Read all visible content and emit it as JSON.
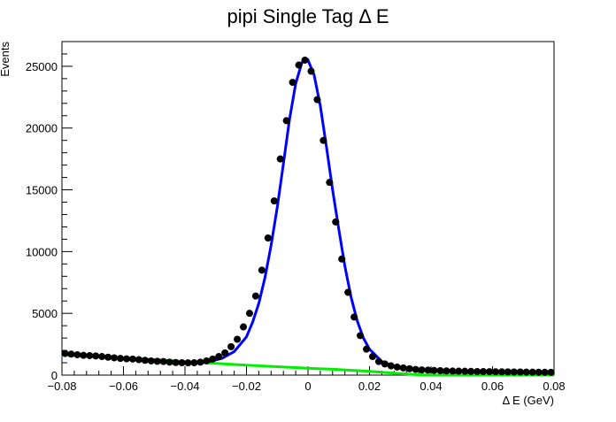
{
  "chart_data": {
    "type": "scatter",
    "title": "pipi Single Tag Δ E",
    "xlabel": "Δ E (GeV)",
    "ylabel": "Events",
    "xlim": [
      -0.08,
      0.08
    ],
    "ylim": [
      0,
      27000
    ],
    "x_ticks": [
      -0.08,
      -0.06,
      -0.04,
      -0.02,
      0,
      0.02,
      0.04,
      0.06,
      0.08
    ],
    "x_tick_labels": [
      "−0.08",
      "−0.06",
      "−0.04",
      "−0.02",
      "0",
      "0.02",
      "0.04",
      "0.06",
      "0.08"
    ],
    "y_ticks": [
      0,
      5000,
      10000,
      15000,
      20000,
      25000
    ],
    "y_tick_labels": [
      "0",
      "5000",
      "10000",
      "15000",
      "20000",
      "25000"
    ],
    "grid": false,
    "legend": "none",
    "colors": {
      "data": "#000000",
      "fit": "#0000ff",
      "background": "#00ee00",
      "frame": "#000000"
    },
    "series": [
      {
        "kind": "points",
        "x": [
          -0.079,
          -0.077,
          -0.075,
          -0.073,
          -0.071,
          -0.069,
          -0.067,
          -0.065,
          -0.063,
          -0.061,
          -0.059,
          -0.057,
          -0.055,
          -0.053,
          -0.051,
          -0.049,
          -0.047,
          -0.045,
          -0.043,
          -0.041,
          -0.039,
          -0.037,
          -0.035,
          -0.033,
          -0.031,
          -0.029,
          -0.027,
          -0.025,
          -0.023,
          -0.021,
          -0.019,
          -0.017,
          -0.015,
          -0.013,
          -0.011,
          -0.009,
          -0.007,
          -0.005,
          -0.003,
          -0.001,
          0.001,
          0.003,
          0.005,
          0.007,
          0.009,
          0.011,
          0.013,
          0.015,
          0.017,
          0.019,
          0.021,
          0.023,
          0.025,
          0.027,
          0.029,
          0.031,
          0.033,
          0.035,
          0.037,
          0.039,
          0.041,
          0.043,
          0.045,
          0.047,
          0.049,
          0.051,
          0.053,
          0.055,
          0.057,
          0.059,
          0.061,
          0.063,
          0.065,
          0.067,
          0.069,
          0.071,
          0.073,
          0.075,
          0.077,
          0.079
        ],
        "y": [
          1750,
          1700,
          1650,
          1600,
          1580,
          1550,
          1500,
          1450,
          1400,
          1350,
          1320,
          1300,
          1250,
          1200,
          1150,
          1120,
          1100,
          1050,
          1020,
          1000,
          990,
          1000,
          1050,
          1150,
          1300,
          1500,
          1800,
          2300,
          2900,
          3900,
          5000,
          6400,
          8500,
          11100,
          14100,
          17500,
          20600,
          23700,
          25100,
          25500,
          24600,
          22300,
          19000,
          15600,
          12400,
          9400,
          6700,
          4700,
          3200,
          2100,
          1500,
          1100,
          900,
          750,
          650,
          580,
          520,
          460,
          420,
          400,
          380,
          360,
          340,
          330,
          320,
          310,
          300,
          290,
          285,
          280,
          270,
          265,
          260,
          255,
          250,
          245,
          240,
          235,
          230,
          225
        ]
      },
      {
        "kind": "line",
        "x": [
          -0.08,
          -0.076,
          -0.072,
          -0.068,
          -0.064,
          -0.06,
          -0.056,
          -0.052,
          -0.048,
          -0.044,
          -0.04,
          -0.036,
          -0.032,
          -0.028,
          -0.024,
          -0.02,
          -0.018,
          -0.016,
          -0.014,
          -0.012,
          -0.01,
          -0.008,
          -0.006,
          -0.004,
          -0.002,
          0,
          0.002,
          0.004,
          0.006,
          0.008,
          0.01,
          0.012,
          0.014,
          0.016,
          0.018,
          0.02,
          0.024,
          0.028,
          0.032,
          0.036,
          0.04,
          0.044,
          0.048,
          0.052,
          0.056,
          0.06,
          0.064,
          0.068,
          0.072,
          0.076,
          0.08
        ],
        "y": [
          1780,
          1680,
          1600,
          1530,
          1450,
          1380,
          1300,
          1230,
          1150,
          1080,
          1000,
          1010,
          1100,
          1350,
          1900,
          3100,
          4300,
          5800,
          7900,
          10500,
          13600,
          17100,
          20700,
          23600,
          25300,
          25500,
          24300,
          21800,
          18500,
          15000,
          11800,
          8800,
          6300,
          4400,
          3000,
          2100,
          1100,
          720,
          560,
          460,
          400,
          360,
          330,
          310,
          295,
          280,
          265,
          255,
          245,
          235,
          230
        ]
      },
      {
        "kind": "line",
        "x": [
          -0.08,
          -0.06,
          -0.04,
          -0.03,
          -0.02,
          -0.01,
          0,
          0.01,
          0.02,
          0.03,
          0.035,
          0.04,
          0.05,
          0.06,
          0.07,
          0.08
        ],
        "y": [
          1650,
          1400,
          1100,
          950,
          800,
          680,
          560,
          450,
          300,
          120,
          40,
          0,
          0,
          0,
          0,
          0
        ]
      }
    ]
  }
}
